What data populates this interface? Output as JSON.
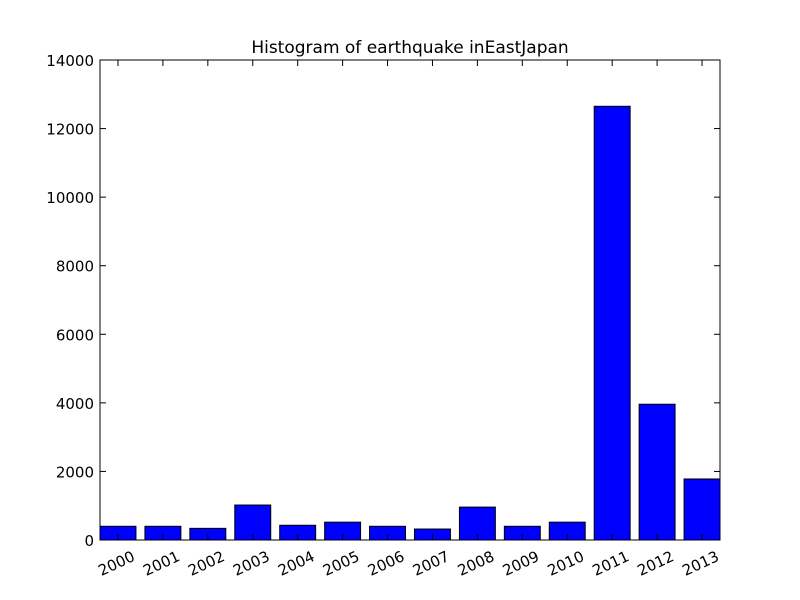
{
  "chart_data": {
    "type": "bar",
    "title": "Histogram of earthquake inEastJapan",
    "xlabel": "",
    "ylabel": "",
    "categories": [
      "2000",
      "2001",
      "2002",
      "2003",
      "2004",
      "2005",
      "2006",
      "2007",
      "2008",
      "2009",
      "2010",
      "2011",
      "2012",
      "2013"
    ],
    "values": [
      400,
      400,
      340,
      1020,
      430,
      520,
      400,
      320,
      960,
      400,
      520,
      12650,
      3960,
      1780
    ],
    "ylim": [
      0,
      14000
    ],
    "yticks": [
      "0",
      "2000",
      "4000",
      "6000",
      "8000",
      "10000",
      "12000",
      "14000"
    ],
    "grid": false,
    "legend": "none",
    "bar_color": "#0000ff",
    "edge_color": "#000000"
  }
}
